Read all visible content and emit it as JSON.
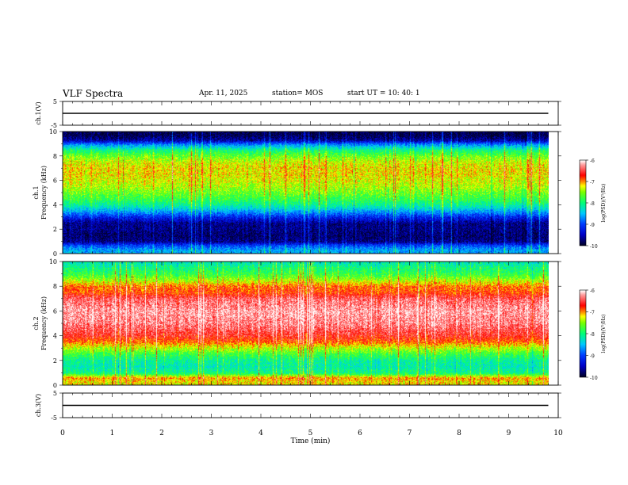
{
  "header": {
    "title": "VLF Spectra",
    "date": "Apr. 11, 2025",
    "station": "station= MOS",
    "start": "start  UT  =   10: 40: 1"
  },
  "chart_data": [
    {
      "type": "line",
      "title": "",
      "xlabel": "",
      "ylabel": "ch.1(V)",
      "xlim": [
        0,
        10
      ],
      "ylim": [
        -5,
        5
      ],
      "yticks": [
        "5",
        "-5"
      ],
      "series": [
        {
          "x": [
            0,
            9.8
          ],
          "values": [
            0,
            0
          ]
        }
      ]
    },
    {
      "type": "heatmap",
      "ylabel": "ch.1\nFrequency (kHz)",
      "ylabel_line1": "ch.1",
      "ylabel_line2": "Frequency (kHz)",
      "xlim": [
        0,
        10
      ],
      "ylim": [
        0,
        10
      ],
      "yticks": [
        "0",
        "2",
        "4",
        "6",
        "8",
        "10"
      ],
      "data_extent_x": [
        0,
        9.8
      ],
      "frequency_profile_kHz": [
        0.3,
        0.7,
        1.0,
        1.5,
        2.0,
        2.5,
        3.0,
        3.5,
        4.0,
        4.5,
        5.0,
        5.5,
        6.0,
        6.5,
        7.0,
        7.5,
        8.0,
        8.5,
        9.0,
        9.3,
        9.7
      ],
      "log_psd_profile": [
        -8.6,
        -9.0,
        -9.7,
        -9.8,
        -9.7,
        -9.7,
        -9.2,
        -8.6,
        -8.1,
        -7.8,
        -7.6,
        -7.4,
        -7.3,
        -7.2,
        -7.2,
        -7.3,
        -7.6,
        -8.0,
        -8.8,
        -9.6,
        -9.9
      ],
      "colorbar": {
        "label": "log(PSD)(V²/Hz)",
        "range": [
          -10,
          -6
        ],
        "ticks": [
          "-6",
          "-7",
          "-8",
          "-9",
          "-10"
        ]
      }
    },
    {
      "type": "heatmap",
      "ylabel": "ch.2\nFrequency (kHz)",
      "ylabel_line1": "ch.2",
      "ylabel_line2": "Frequency (kHz)",
      "xlim": [
        0,
        10
      ],
      "ylim": [
        0,
        10
      ],
      "yticks": [
        "0",
        "2",
        "4",
        "6",
        "8",
        "10"
      ],
      "data_extent_x": [
        0,
        9.8
      ],
      "frequency_profile_kHz": [
        0.3,
        0.6,
        1.0,
        1.5,
        2.0,
        2.5,
        3.0,
        3.5,
        4.0,
        5.0,
        6.0,
        7.0,
        7.5,
        8.0,
        8.5,
        9.0,
        9.5,
        9.9
      ],
      "log_psd_profile": [
        -7.2,
        -7.0,
        -8.0,
        -8.2,
        -8.1,
        -7.8,
        -7.4,
        -6.9,
        -6.6,
        -6.3,
        -6.2,
        -6.4,
        -6.8,
        -6.9,
        -7.4,
        -7.8,
        -8.0,
        -8.2
      ],
      "colorbar": {
        "label": "log(PSD)(V²/Hz)",
        "range": [
          -10,
          -6
        ],
        "ticks": [
          "-6",
          "-7",
          "-8",
          "-9",
          "-10"
        ]
      }
    },
    {
      "type": "line",
      "title": "",
      "xlabel": "Time  (min)",
      "ylabel": "ch.3(V)",
      "xlim": [
        0,
        10
      ],
      "ylim": [
        -5,
        5
      ],
      "yticks": [
        "5",
        "-5"
      ],
      "xticks": [
        "0",
        "1",
        "2",
        "3",
        "4",
        "5",
        "6",
        "7",
        "8",
        "9",
        "10"
      ],
      "series": [
        {
          "x": [
            0,
            9.8
          ],
          "values": [
            0,
            0
          ]
        }
      ]
    }
  ],
  "colors": {
    "axis": "#000000",
    "colormap": [
      "#000020",
      "#0000ff",
      "#00c8ff",
      "#00ff40",
      "#ffff00",
      "#ff0000",
      "#ffffff"
    ]
  }
}
